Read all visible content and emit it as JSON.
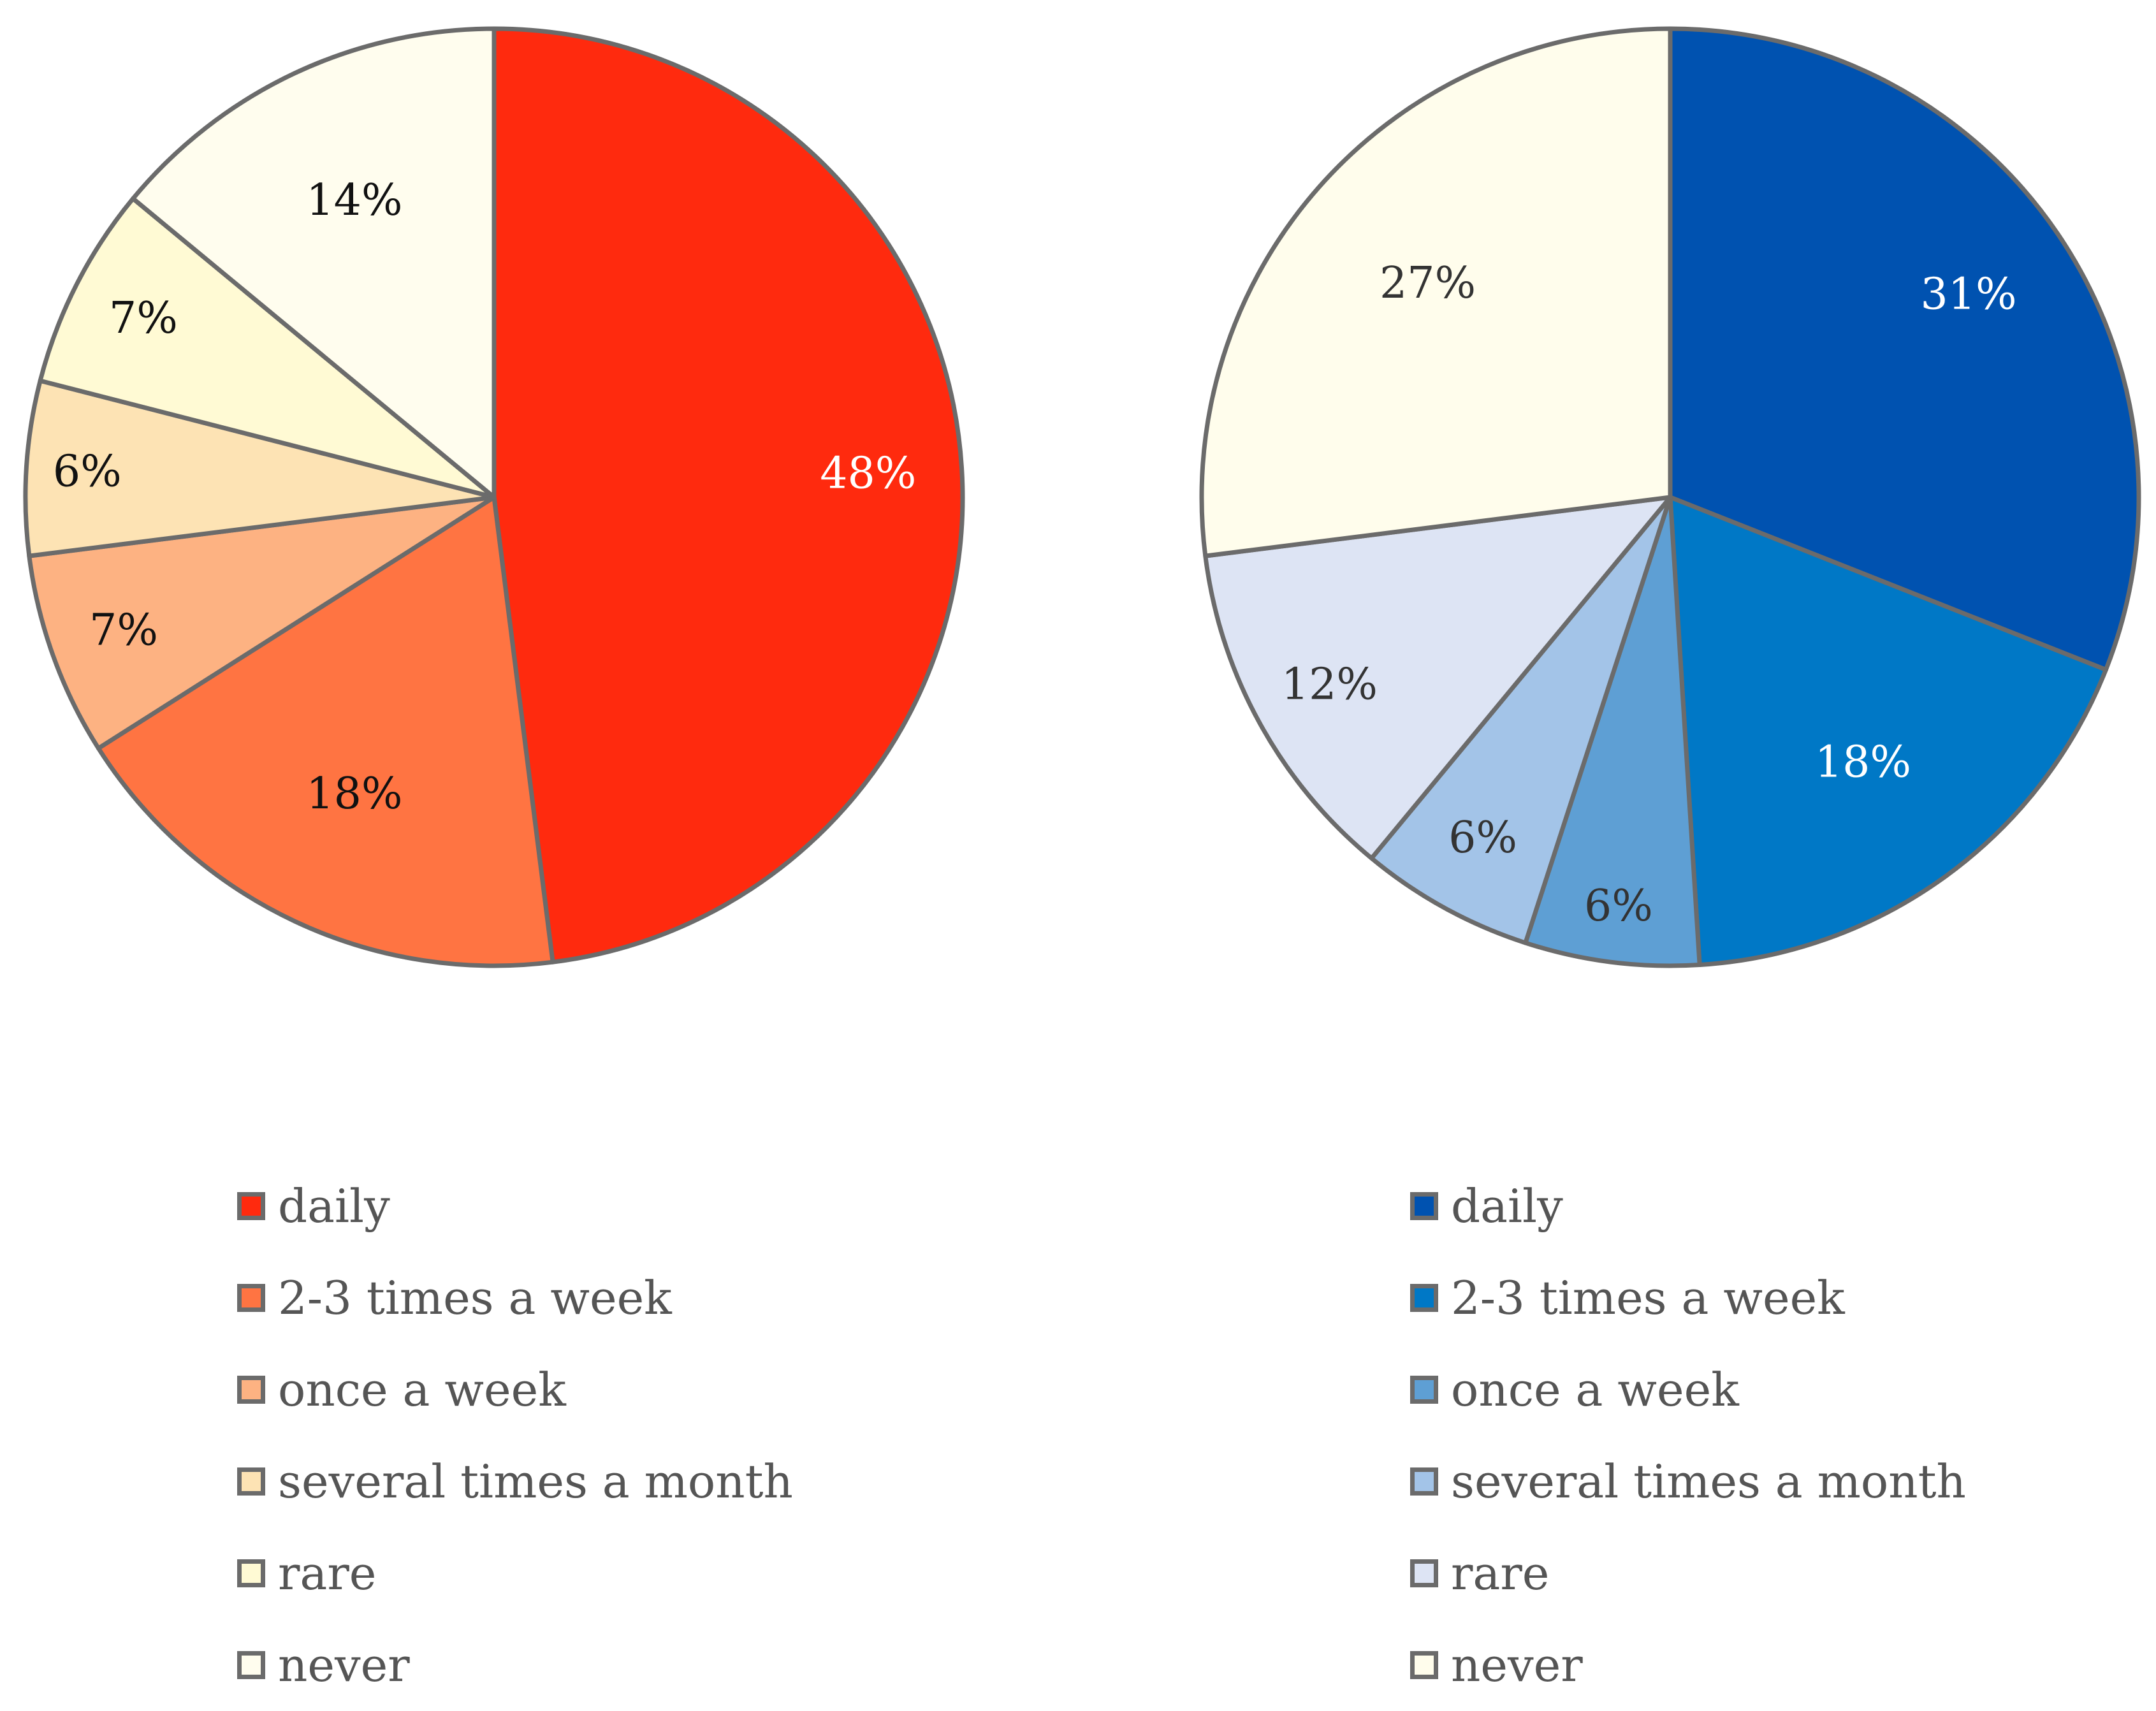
{
  "chart_data": [
    {
      "type": "pie",
      "title": "",
      "label_format": "percent",
      "categories": [
        "daily",
        "2-3 times a week",
        "once a week",
        "several times a month",
        "rare",
        "never"
      ],
      "values": [
        48,
        18,
        7,
        6,
        7,
        14
      ],
      "labels": [
        "48%",
        "18%",
        "7%",
        "6%",
        "7%",
        "14%"
      ],
      "colors": [
        "#ff2a0e",
        "#ff7442",
        "#fdb282",
        "#fde3b4",
        "#fffad4",
        "#fffdee"
      ],
      "label_colors": [
        "#ffffff",
        "#111111",
        "#111111",
        "#111111",
        "#111111",
        "#111111"
      ],
      "legend": {
        "position": "bottom"
      }
    },
    {
      "type": "pie",
      "title": "",
      "label_format": "percent",
      "categories": [
        "daily",
        "2-3 times a week",
        "once a week",
        "several times a month",
        "rare",
        "never"
      ],
      "values": [
        31,
        18,
        6,
        6,
        12,
        27
      ],
      "labels": [
        "31%",
        "18%",
        "6%",
        "6%",
        "12%",
        "27%"
      ],
      "colors": [
        "#0052b0",
        "#0078c6",
        "#5e9fd4",
        "#a3c4e8",
        "#dde4f4",
        "#fffdec"
      ],
      "label_colors": [
        "#ffffff",
        "#ffffff",
        "#333333",
        "#333333",
        "#333333",
        "#333333"
      ],
      "legend": {
        "position": "bottom"
      }
    }
  ]
}
